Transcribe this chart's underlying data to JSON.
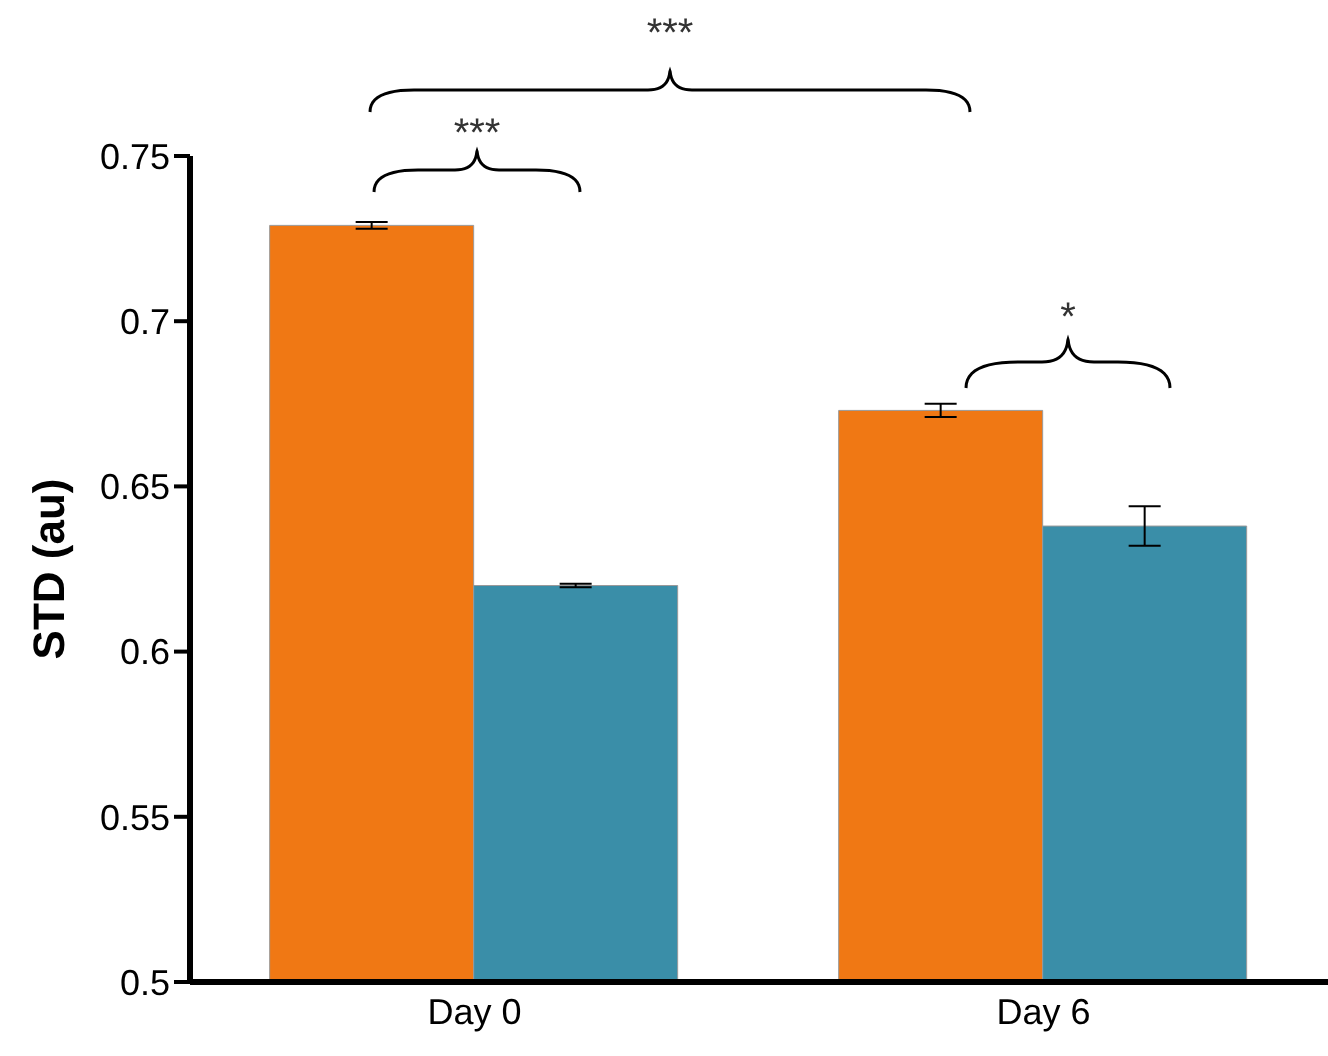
{
  "chart_data": {
    "type": "bar",
    "ylabel": "STD (au)",
    "categories": [
      "Day 0",
      "Day 6"
    ],
    "series": [
      {
        "color": "#f07814",
        "values": [
          0.729,
          0.673
        ],
        "errors": [
          0.001,
          0.002
        ]
      },
      {
        "color": "#3a8ea8",
        "values": [
          0.62,
          0.638
        ],
        "errors": [
          0.0005,
          0.006
        ]
      }
    ],
    "ylim": [
      0.5,
      0.75
    ],
    "yticks": [
      0.5,
      0.55,
      0.6,
      0.65,
      0.7,
      0.75
    ],
    "grid": false,
    "legend": false,
    "annotations": [
      "***",
      "***",
      "*"
    ]
  }
}
